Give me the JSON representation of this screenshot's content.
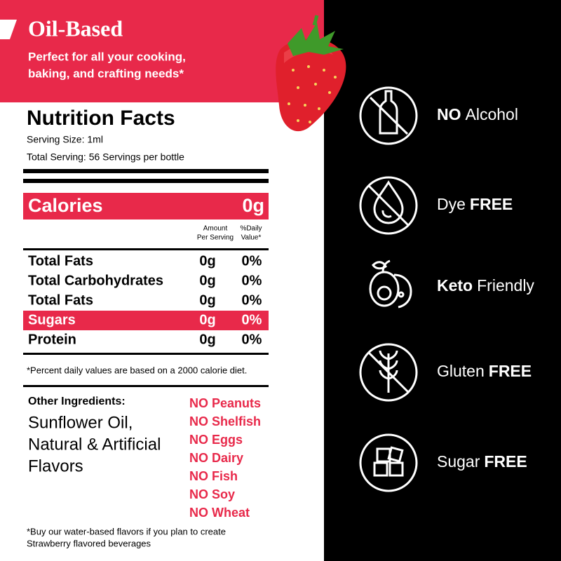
{
  "header": {
    "title": "Oil-Based",
    "subtitle": [
      "Perfect for all your cooking,",
      "baking, and crafting needs*"
    ]
  },
  "nutrition": {
    "title": "Nutrition Facts",
    "serving_size": "Serving Size: 1ml",
    "total_serving": "Total Serving: 56 Servings per bottle",
    "calories": {
      "label": "Calories",
      "value": "0g"
    },
    "columns": {
      "amount": [
        "Amount",
        "Per Serving"
      ],
      "daily_value": [
        "%Daily",
        "Value*"
      ]
    },
    "rows": [
      {
        "name": "Total Fats",
        "amount": "0g",
        "daily_value": "0%",
        "highlight": false
      },
      {
        "name": "Total Carbohydrates",
        "amount": "0g",
        "daily_value": "0%",
        "highlight": false
      },
      {
        "name": "Total Fats",
        "amount": "0g",
        "daily_value": "0%",
        "highlight": false
      },
      {
        "name": "Sugars",
        "amount": "0g",
        "daily_value": "0%",
        "highlight": true
      },
      {
        "name": "Protein",
        "amount": "0g",
        "daily_value": "0%",
        "highlight": false
      }
    ],
    "footnote": "*Percent daily values are based on a 2000 calorie diet."
  },
  "ingredients": {
    "title": "Other Ingredients:",
    "lines": [
      "Sunflower Oil,",
      "Natural & Artificial",
      "Flavors"
    ]
  },
  "allergens": [
    "NO Peanuts",
    "NO Shelfish",
    "NO Eggs",
    "NO Dairy",
    "NO Fish",
    "NO Soy",
    "NO Wheat"
  ],
  "footer": [
    "*Buy our water-based flavors if you plan to create",
    "Strawberry flavored beverages"
  ],
  "features": [
    {
      "parts": [
        {
          "text": "NO",
          "bold": true
        },
        {
          "text": "Alcohol",
          "bold": false
        }
      ]
    },
    {
      "parts": [
        {
          "text": "Dye",
          "bold": false
        },
        {
          "text": "FREE",
          "bold": true
        }
      ]
    },
    {
      "parts": [
        {
          "text": "Keto",
          "bold": true
        },
        {
          "text": "Friendly",
          "bold": false
        }
      ]
    },
    {
      "parts": [
        {
          "text": "Gluten",
          "bold": false
        },
        {
          "text": "FREE",
          "bold": true
        }
      ]
    },
    {
      "parts": [
        {
          "text": "Sugar",
          "bold": false
        },
        {
          "text": "FREE",
          "bold": true
        }
      ]
    }
  ]
}
